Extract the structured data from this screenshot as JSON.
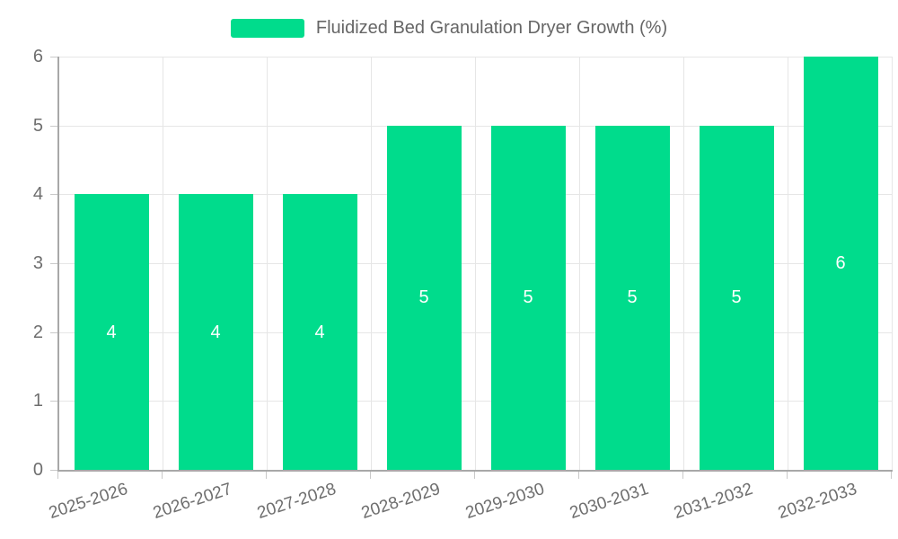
{
  "legend": {
    "label": "Fluidized Bed Granulation Dryer Growth (%)"
  },
  "colors": {
    "bar": "#00DC8C",
    "grid": "#e6e6e6",
    "axis_line": "#a8a8a8",
    "tick": "#c9c9c9",
    "axis_text": "#6e6e6e",
    "legend_text": "#666666",
    "data_label_text": "#ffffff",
    "background": "#ffffff"
  },
  "chart_data": {
    "type": "bar",
    "title": "Fluidized Bed Granulation Dryer Growth (%)",
    "categories": [
      "2025-2026",
      "2026-2027",
      "2027-2028",
      "2028-2029",
      "2029-2030",
      "2030-2031",
      "2031-2032",
      "2032-2033"
    ],
    "values": [
      4,
      4,
      4,
      5,
      5,
      5,
      5,
      6
    ],
    "xlabel": "",
    "ylabel": "",
    "ylim": [
      0,
      6
    ],
    "ytick_step": 1,
    "yticks": [
      0,
      1,
      2,
      3,
      4,
      5,
      6
    ],
    "grid": "horizontal and vertical light-gray gridlines",
    "legend_position": "top-center",
    "data_labels": "values shown in white, centered inside bars",
    "x_label_rotation_deg": -18
  }
}
